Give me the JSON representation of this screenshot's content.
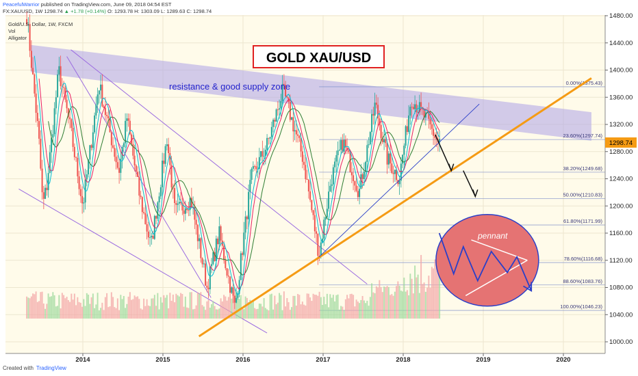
{
  "header": {
    "publisher": "PeacefulWarrior",
    "published_text": "published on TradingView.com, June 09, 2018 04:54 EST",
    "symbol": "FX:XAUUSD, 1W",
    "last": "1298.74",
    "change": "▲ +1.78 (+0.14%)",
    "ohlc": "O: 1293.78 H: 1303.09 L: 1289.63 C: 1298.74"
  },
  "legend": {
    "series_name": "Gold/U.S. Dollar, 1W, FXCM",
    "volume": "Vol",
    "indicator": "Alligator"
  },
  "title_box": "GOLD XAU/USD",
  "annotations": {
    "zone": "resistance & good supply zone",
    "pattern": "pennant"
  },
  "price_tag": "1298.74",
  "footer": {
    "created_with": "Created with",
    "brand": "TradingView"
  },
  "colors": {
    "up_candle": "#26a69a",
    "down_candle": "#ef5350",
    "orange_trendline": "#f59b14",
    "resistance_zone": "#b4aae6",
    "pennant_circle": "#e57373",
    "title_border": "#e02020"
  },
  "chart_data": {
    "type": "candlestick",
    "ylim": [
      990,
      1500
    ],
    "y_ticks": [
      1000,
      1040,
      1080,
      1120,
      1160,
      1200,
      1240,
      1280,
      1320,
      1360,
      1400,
      1440,
      1480
    ],
    "y_tick_labels": [
      "1000.00",
      "1040.00",
      "1080.00",
      "1120.00",
      "1160.00",
      "1200.00",
      "1240.00",
      "1280.00",
      "1320.00",
      "1360.00",
      "1400.00",
      "1440.00",
      "1480.00"
    ],
    "x_ticks": [
      "2014",
      "2015",
      "2016",
      "2017",
      "2018",
      "2019",
      "2020"
    ],
    "last_price": 1298.74,
    "fibonacci": [
      {
        "label": "0.00%(1375.43)",
        "value": 1375.43
      },
      {
        "label": "23.60%(1297.74)",
        "value": 1297.74
      },
      {
        "label": "38.20%(1249.68)",
        "value": 1249.68
      },
      {
        "label": "50.00%(1210.83)",
        "value": 1210.83
      },
      {
        "label": "61.80%(1171.99)",
        "value": 1171.99
      },
      {
        "label": "78.60%(1116.68)",
        "value": 1116.68
      },
      {
        "label": "88.60%(1083.76)",
        "value": 1083.76
      },
      {
        "label": "100.00%(1046.23)",
        "value": 1046.23
      }
    ],
    "price_path": [
      {
        "t": 2013.3,
        "v": 1480
      },
      {
        "t": 2013.45,
        "v": 1300
      },
      {
        "t": 2013.5,
        "v": 1200
      },
      {
        "t": 2013.55,
        "v": 1230
      },
      {
        "t": 2013.7,
        "v": 1400
      },
      {
        "t": 2013.85,
        "v": 1310
      },
      {
        "t": 2014.0,
        "v": 1200
      },
      {
        "t": 2014.2,
        "v": 1380
      },
      {
        "t": 2014.45,
        "v": 1250
      },
      {
        "t": 2014.55,
        "v": 1330
      },
      {
        "t": 2014.7,
        "v": 1220
      },
      {
        "t": 2014.85,
        "v": 1140
      },
      {
        "t": 2015.05,
        "v": 1300
      },
      {
        "t": 2015.15,
        "v": 1190
      },
      {
        "t": 2015.35,
        "v": 1210
      },
      {
        "t": 2015.55,
        "v": 1080
      },
      {
        "t": 2015.7,
        "v": 1160
      },
      {
        "t": 2015.9,
        "v": 1050
      },
      {
        "t": 2016.1,
        "v": 1240
      },
      {
        "t": 2016.3,
        "v": 1290
      },
      {
        "t": 2016.5,
        "v": 1370
      },
      {
        "t": 2016.75,
        "v": 1270
      },
      {
        "t": 2016.95,
        "v": 1128
      },
      {
        "t": 2017.1,
        "v": 1240
      },
      {
        "t": 2017.25,
        "v": 1295
      },
      {
        "t": 2017.45,
        "v": 1220
      },
      {
        "t": 2017.65,
        "v": 1350
      },
      {
        "t": 2017.8,
        "v": 1270
      },
      {
        "t": 2017.95,
        "v": 1240
      },
      {
        "t": 2018.1,
        "v": 1360
      },
      {
        "t": 2018.3,
        "v": 1325
      },
      {
        "t": 2018.45,
        "v": 1290
      },
      {
        "t": 2018.47,
        "v": 1298.74
      }
    ],
    "alligator": [
      {
        "name": "Jaw",
        "color": "#2e7d32",
        "smooth": 14
      },
      {
        "name": "Teeth",
        "color": "#e91e63",
        "smooth": 8
      },
      {
        "name": "Lips",
        "color": "#00bcd4",
        "smooth": 5
      }
    ]
  }
}
